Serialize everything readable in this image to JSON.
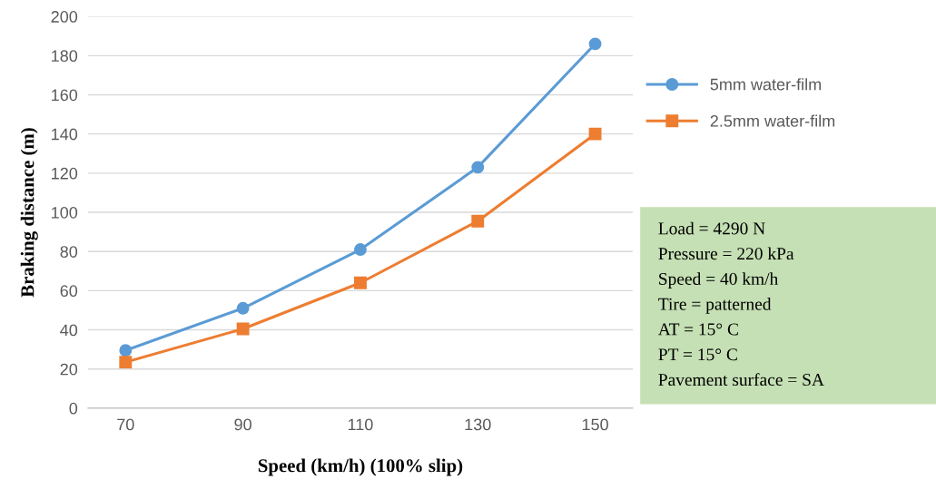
{
  "chart_data": {
    "type": "line",
    "xlabel": "Speed (km/h) (100% slip)",
    "ylabel": "Braking distance (m)",
    "categories": [
      "70",
      "90",
      "110",
      "130",
      "150"
    ],
    "series": [
      {
        "name": "5mm water-film",
        "color": "#5b9bd5",
        "marker": "circle",
        "values": [
          29.5,
          51,
          81,
          123,
          186
        ]
      },
      {
        "name": "2.5mm water-film",
        "color": "#ed7d31",
        "marker": "square",
        "values": [
          23.5,
          40.5,
          64,
          95.5,
          140
        ]
      }
    ],
    "ylim": [
      0,
      200
    ],
    "yticks": [
      0,
      20,
      40,
      60,
      80,
      100,
      120,
      140,
      160,
      180,
      200
    ],
    "grid": "y",
    "legend": "right",
    "line_style": "solid",
    "annotations": [
      "Load = 4290 N",
      "Pressure = 220 kPa",
      "Speed = 40 km/h",
      "Tire = patterned",
      "AT = 15° C",
      "PT = 15° C",
      "Pavement surface = SA"
    ]
  }
}
